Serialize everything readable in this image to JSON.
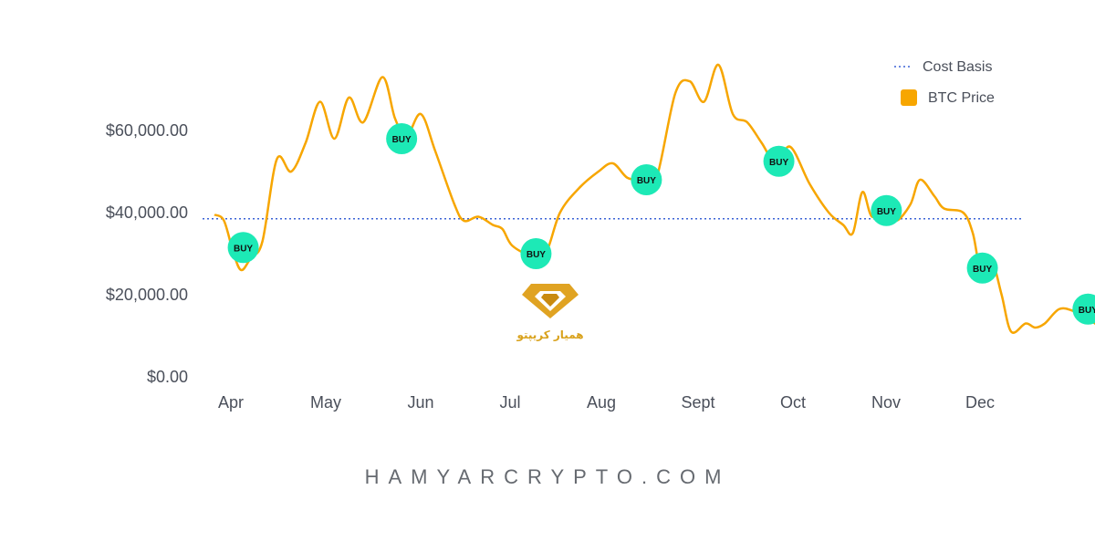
{
  "chart_data": {
    "type": "line",
    "x_labels": [
      "Apr",
      "May",
      "Jun",
      "Jul",
      "Aug",
      "Sept",
      "Oct",
      "Nov",
      "Dec"
    ],
    "y_ticks": [
      "$0.00",
      "$20,000.00",
      "$40,000.00",
      "$60,000.00"
    ],
    "ylim": [
      0,
      80000
    ],
    "grid": false,
    "legend_position": "top-right",
    "series": [
      {
        "name": "BTC Price",
        "color": "#f7a600",
        "points": [
          [
            0.0,
            39500
          ],
          [
            0.1,
            38000
          ],
          [
            0.2,
            30000
          ],
          [
            0.28,
            26000
          ],
          [
            0.38,
            29000
          ],
          [
            0.5,
            33000
          ],
          [
            0.65,
            53000
          ],
          [
            0.8,
            50000
          ],
          [
            0.95,
            57000
          ],
          [
            1.1,
            67000
          ],
          [
            1.25,
            58000
          ],
          [
            1.4,
            68000
          ],
          [
            1.55,
            62000
          ],
          [
            1.75,
            73000
          ],
          [
            1.88,
            63000
          ],
          [
            2.0,
            58500
          ],
          [
            2.15,
            64000
          ],
          [
            2.3,
            55000
          ],
          [
            2.5,
            42000
          ],
          [
            2.6,
            38000
          ],
          [
            2.75,
            39000
          ],
          [
            2.9,
            37000
          ],
          [
            3.0,
            36000
          ],
          [
            3.1,
            32000
          ],
          [
            3.3,
            29500
          ],
          [
            3.45,
            30000
          ],
          [
            3.6,
            40000
          ],
          [
            3.8,
            46000
          ],
          [
            4.0,
            50000
          ],
          [
            4.15,
            52000
          ],
          [
            4.3,
            48500
          ],
          [
            4.45,
            48000
          ],
          [
            4.6,
            48000
          ],
          [
            4.8,
            69000
          ],
          [
            4.95,
            72000
          ],
          [
            5.1,
            67000
          ],
          [
            5.25,
            76000
          ],
          [
            5.4,
            64000
          ],
          [
            5.55,
            62000
          ],
          [
            5.7,
            57000
          ],
          [
            5.85,
            52000
          ],
          [
            6.0,
            56000
          ],
          [
            6.2,
            47000
          ],
          [
            6.4,
            40000
          ],
          [
            6.55,
            37000
          ],
          [
            6.65,
            35000
          ],
          [
            6.75,
            45000
          ],
          [
            6.85,
            39000
          ],
          [
            7.0,
            41000
          ],
          [
            7.1,
            38000
          ],
          [
            7.25,
            42000
          ],
          [
            7.35,
            48000
          ],
          [
            7.5,
            44000
          ],
          [
            7.6,
            41000
          ],
          [
            7.8,
            40000
          ],
          [
            7.9,
            35000
          ],
          [
            7.98,
            26500
          ],
          [
            8.1,
            28000
          ],
          [
            8.2,
            20000
          ],
          [
            8.3,
            11000
          ],
          [
            8.45,
            13000
          ],
          [
            8.55,
            12000
          ],
          [
            8.65,
            13000
          ],
          [
            8.8,
            16500
          ],
          [
            8.95,
            16000
          ],
          [
            9.1,
            14000
          ],
          [
            9.25,
            12000
          ],
          [
            9.4,
            10500
          ],
          [
            9.6,
            10200
          ],
          [
            9.8,
            11000
          ],
          [
            9.95,
            11000
          ]
        ]
      },
      {
        "name": "Cost Basis",
        "color": "#3b63d6",
        "value": 38500
      }
    ],
    "annotations": [
      {
        "text": "BUY",
        "x": 0.3,
        "y": 31500
      },
      {
        "text": "BUY",
        "x": 1.95,
        "y": 58000
      },
      {
        "text": "BUY",
        "x": 3.35,
        "y": 30000
      },
      {
        "text": "BUY",
        "x": 4.5,
        "y": 48000
      },
      {
        "text": "BUY",
        "x": 5.88,
        "y": 52500
      },
      {
        "text": "BUY",
        "x": 7.0,
        "y": 40500
      },
      {
        "text": "BUY",
        "x": 8.0,
        "y": 26500
      },
      {
        "text": "BUY",
        "x": 9.1,
        "y": 16500
      },
      {
        "text": "BUY",
        "x": 9.95,
        "y": 11000
      }
    ],
    "annotation_color": "#1de9b6"
  },
  "legend": {
    "cost_basis": "Cost Basis",
    "btc_price": "BTC Price"
  },
  "logo": {
    "text": "همیار کریپتو"
  },
  "footer": {
    "text": "HAMYARCRYPTO.COM"
  }
}
